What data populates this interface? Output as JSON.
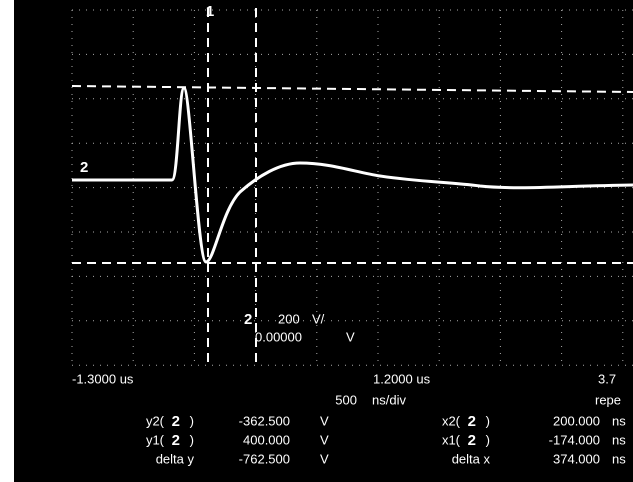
{
  "markers": {
    "top_cursor": "1",
    "ref_level": "2"
  },
  "channel": {
    "number": "2",
    "scale": "200",
    "scale_unit": "V/",
    "offset": "0.00000",
    "offset_unit": "V"
  },
  "time_axis": {
    "start": "-1.3000 us",
    "center": "1.2000 us",
    "end": "3.7",
    "per_div": "500",
    "per_div_unit": "ns/div",
    "mode": "repe"
  },
  "readouts_y": [
    {
      "name": "y2(",
      "ch": "2",
      "close": ")",
      "value": "-362.500",
      "unit": "V"
    },
    {
      "name": "y1(",
      "ch": "2",
      "close": ")",
      "value": "400.000",
      "unit": "V"
    },
    {
      "name": "delta y",
      "value": "-762.500",
      "unit": "V"
    }
  ],
  "readouts_x": [
    {
      "name": "x2(",
      "ch": "2",
      "close": ")",
      "value": "200.000",
      "unit": "ns"
    },
    {
      "name": "x1(",
      "ch": "2",
      "close": ")",
      "value": "-174.000",
      "unit": "ns"
    },
    {
      "name": "delta x",
      "value": "374.000",
      "unit": "ns"
    }
  ]
}
